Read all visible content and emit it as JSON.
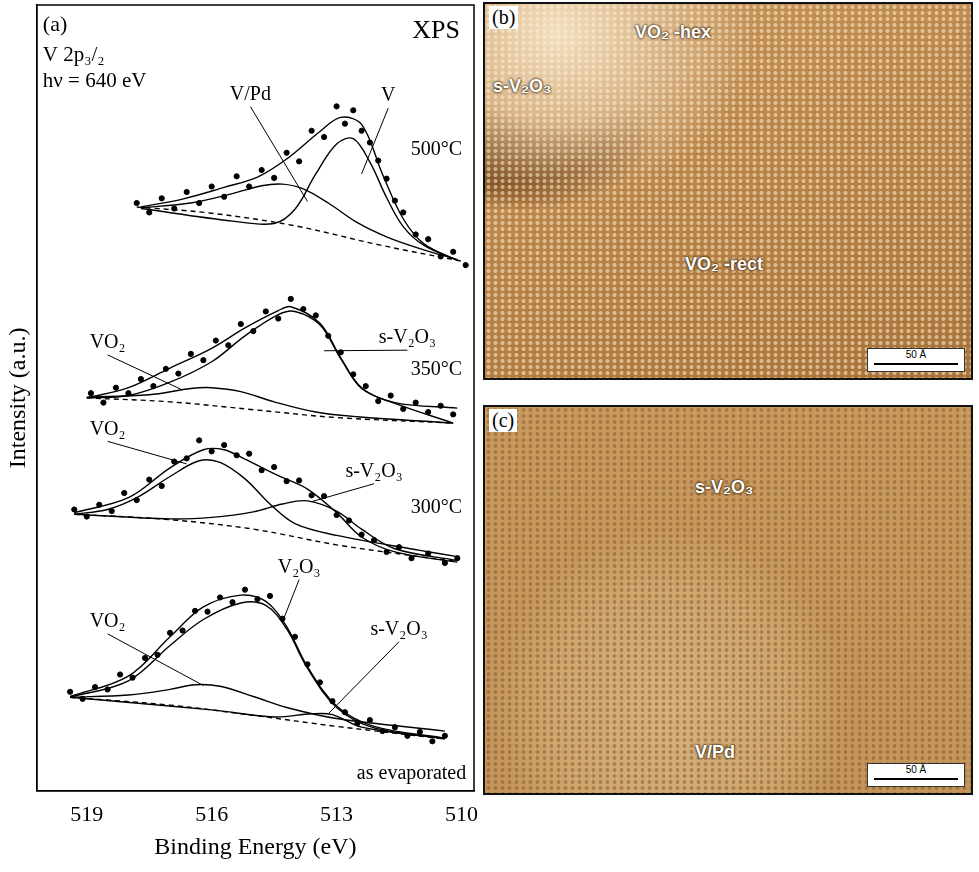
{
  "chart_data": {
    "type": "scatter",
    "panel": "(a)",
    "title": "XPS",
    "subtitle": [
      "V 2p₃/₂",
      "hν = 640 eV"
    ],
    "x_label": "Binding Energy (eV)",
    "y_label": "Intensity (a.u.)",
    "xlim": [
      520.2,
      509.7
    ],
    "xticks": [
      519,
      516,
      513,
      510
    ],
    "ylim": [
      0,
      100
    ],
    "tick_labels": "x",
    "grid": false,
    "series": [
      {
        "type": "scatter",
        "marker": "circle",
        "color": "#000000",
        "x": [
          517.8,
          517.5,
          517.2,
          516.9,
          516.6,
          516.3,
          516.0,
          515.7,
          515.4,
          515.1,
          514.8,
          514.5,
          514.2,
          513.9,
          513.6,
          513.3,
          513.0,
          512.8,
          512.6,
          512.4,
          512.2,
          512.0,
          511.8,
          511.6,
          511.4,
          511.1,
          510.8,
          510.5,
          510.2,
          509.9
        ],
        "values": [
          74.8,
          73.6,
          75.4,
          74.1,
          76.2,
          74.8,
          76.9,
          75.6,
          78.2,
          76.9,
          79.0,
          78.0,
          81.2,
          80.1,
          84.0,
          83.2,
          87.1,
          84.9,
          86.6,
          84.0,
          82.5,
          80.2,
          77.9,
          75.1,
          73.6,
          70.8,
          70.2,
          68.0,
          68.6,
          66.9
        ]
      },
      {
        "type": "line",
        "line_style": "solid",
        "color": "#000000",
        "x": [
          517.7,
          516.7,
          515.7,
          514.9,
          514.2,
          513.4,
          512.9,
          512.4,
          511.9,
          511.4,
          510.9,
          510.1
        ],
        "values": [
          74.3,
          75.3,
          76.8,
          78.1,
          80.4,
          83.9,
          85.7,
          84.8,
          78.5,
          72.8,
          69.6,
          67.5
        ]
      },
      {
        "type": "line",
        "line_style": "solid",
        "color": "#000000",
        "x": [
          517.7,
          516.5,
          515.5,
          514.8,
          514.3,
          513.8,
          513.2,
          512.5,
          511.8,
          511.0,
          510.1
        ],
        "values": [
          74.2,
          74.8,
          76.0,
          77.0,
          77.2,
          76.6,
          74.8,
          72.3,
          70.5,
          69.0,
          67.6
        ]
      },
      {
        "type": "line",
        "line_style": "solid",
        "color": "#000000",
        "x": [
          517.7,
          515.5,
          514.5,
          514.0,
          513.5,
          513.0,
          512.6,
          512.2,
          511.8,
          511.4,
          510.9,
          510.1
        ],
        "values": [
          74.1,
          72.5,
          72.2,
          74.0,
          78.5,
          82.3,
          83.0,
          80.0,
          75.5,
          71.8,
          69.4,
          67.5
        ]
      },
      {
        "type": "line",
        "line_style": "dashed",
        "color": "#000000",
        "x": [
          517.8,
          516.0,
          514.0,
          512.0,
          510.0
        ],
        "values": [
          74.3,
          73.5,
          71.9,
          69.5,
          67.4
        ]
      },
      {
        "type": "scatter",
        "marker": "circle",
        "color": "#000000",
        "x": [
          518.9,
          518.6,
          518.3,
          518.0,
          517.7,
          517.4,
          517.1,
          516.8,
          516.5,
          516.2,
          515.9,
          515.6,
          515.3,
          515.0,
          514.7,
          514.4,
          514.1,
          513.8,
          513.5,
          513.2,
          512.9,
          512.6,
          512.3,
          512.0,
          511.7,
          511.4,
          511.1,
          510.8,
          510.5,
          510.2
        ],
        "values": [
          50.6,
          49.4,
          51.3,
          50.6,
          52.4,
          51.5,
          53.7,
          53.1,
          55.6,
          54.8,
          57.3,
          56.7,
          59.4,
          58.5,
          61.0,
          60.1,
          62.6,
          61.3,
          60.5,
          57.9,
          55.8,
          53.0,
          51.5,
          49.6,
          50.3,
          48.6,
          49.4,
          48.2,
          49.0,
          47.9
        ]
      },
      {
        "type": "line",
        "line_style": "solid",
        "color": "#000000",
        "x": [
          519.0,
          518.0,
          517.0,
          516.0,
          515.2,
          514.4,
          514.1,
          513.4,
          512.9,
          512.4,
          511.6,
          510.1
        ],
        "values": [
          50.0,
          51.3,
          53.8,
          56.3,
          58.9,
          61.1,
          61.6,
          59.5,
          55.1,
          51.3,
          49.4,
          48.7
        ]
      },
      {
        "type": "line",
        "line_style": "solid",
        "color": "#000000",
        "x": [
          519.0,
          517.5,
          516.5,
          516.0,
          515.3,
          514.5,
          513.5,
          512.5,
          510.2
        ],
        "values": [
          50.1,
          50.4,
          51.2,
          51.3,
          50.8,
          49.5,
          48.2,
          47.6,
          46.8
        ]
      },
      {
        "type": "line",
        "line_style": "solid",
        "color": "#000000",
        "x": [
          519.0,
          518.0,
          517.0,
          516.0,
          515.2,
          514.4,
          514.0,
          513.4,
          512.9,
          512.4,
          511.6,
          510.2
        ],
        "values": [
          50.0,
          50.3,
          52.0,
          54.6,
          57.9,
          60.6,
          61.0,
          59.3,
          55.0,
          51.2,
          49.3,
          46.8
        ]
      },
      {
        "type": "line",
        "line_style": "dashed",
        "color": "#000000",
        "x": [
          519.0,
          517.0,
          515.0,
          513.0,
          510.2
        ],
        "values": [
          50.0,
          49.5,
          48.5,
          47.5,
          46.8
        ]
      },
      {
        "type": "scatter",
        "marker": "circle",
        "color": "#000000",
        "x": [
          519.3,
          519.0,
          518.7,
          518.4,
          518.1,
          517.8,
          517.5,
          517.2,
          516.9,
          516.6,
          516.3,
          516.0,
          515.7,
          515.4,
          515.1,
          514.8,
          514.5,
          514.2,
          513.9,
          513.6,
          513.3,
          513.0,
          512.7,
          512.4,
          512.1,
          511.8,
          511.5,
          511.2,
          510.8,
          510.4,
          510.1
        ],
        "values": [
          35.8,
          34.9,
          36.4,
          35.6,
          37.9,
          37.0,
          39.6,
          38.8,
          41.9,
          42.3,
          44.6,
          43.2,
          44.0,
          42.7,
          42.9,
          40.8,
          41.2,
          39.4,
          39.5,
          37.6,
          37.5,
          35.1,
          34.4,
          32.6,
          31.9,
          30.4,
          31.0,
          29.6,
          30.2,
          29.0,
          29.6
        ]
      },
      {
        "type": "line",
        "line_style": "solid",
        "color": "#000000",
        "x": [
          519.3,
          518.0,
          517.0,
          516.2,
          515.7,
          515.2,
          514.4,
          513.7,
          513.0,
          512.4,
          511.6,
          510.1
        ],
        "values": [
          35.4,
          37.3,
          41.1,
          43.4,
          43.4,
          42.2,
          40.1,
          38.4,
          35.4,
          32.3,
          30.4,
          29.1
        ]
      },
      {
        "type": "line",
        "line_style": "solid",
        "color": "#000000",
        "x": [
          519.3,
          518.5,
          517.8,
          517.0,
          516.3,
          515.8,
          515.2,
          514.6,
          514.0,
          513.0,
          511.0,
          510.1
        ],
        "values": [
          35.2,
          35.8,
          37.3,
          40.0,
          42.0,
          41.8,
          39.7,
          36.5,
          34.0,
          32.5,
          30.6,
          29.8
        ]
      },
      {
        "type": "line",
        "line_style": "solid",
        "color": "#000000",
        "x": [
          519.3,
          517.0,
          516.0,
          515.0,
          514.3,
          513.7,
          513.0,
          512.4,
          511.6,
          510.1
        ],
        "values": [
          35.2,
          34.6,
          34.8,
          35.5,
          36.5,
          36.9,
          35.6,
          33.3,
          30.8,
          29.3
        ]
      },
      {
        "type": "line",
        "line_style": "dashed",
        "color": "#000000",
        "x": [
          519.3,
          517.0,
          515.0,
          513.0,
          511.0,
          510.1
        ],
        "values": [
          35.2,
          34.5,
          33.3,
          31.3,
          29.8,
          29.2
        ]
      },
      {
        "type": "scatter",
        "marker": "circle",
        "color": "#000000",
        "x": [
          519.4,
          519.1,
          518.8,
          518.5,
          518.2,
          517.9,
          517.6,
          517.3,
          517.0,
          516.7,
          516.4,
          516.1,
          515.8,
          515.5,
          515.2,
          514.9,
          514.6,
          514.3,
          514.0,
          513.7,
          513.4,
          513.1,
          512.8,
          512.5,
          512.2,
          511.9,
          511.6,
          511.3,
          511.0,
          510.7,
          510.4
        ],
        "values": [
          12.6,
          11.7,
          13.2,
          12.9,
          14.8,
          14.4,
          16.9,
          17.3,
          20.1,
          20.4,
          22.9,
          22.8,
          24.6,
          24.0,
          25.6,
          24.4,
          24.8,
          21.9,
          19.6,
          16.1,
          13.8,
          11.4,
          10.0,
          8.6,
          9.0,
          7.6,
          8.1,
          7.0,
          7.5,
          6.3,
          7.0
        ]
      },
      {
        "type": "line",
        "line_style": "solid",
        "color": "#000000",
        "x": [
          519.4,
          518.0,
          517.0,
          516.2,
          515.3,
          514.7,
          514.2,
          513.7,
          513.0,
          512.1,
          510.4
        ],
        "values": [
          12.0,
          14.6,
          19.6,
          23.4,
          24.9,
          24.1,
          20.9,
          15.8,
          10.8,
          8.2,
          6.7
        ]
      },
      {
        "type": "line",
        "line_style": "solid",
        "color": "#000000",
        "x": [
          519.4,
          518.0,
          517.0,
          516.4,
          515.8,
          515.0,
          514.2,
          513.0,
          510.4
        ],
        "values": [
          11.9,
          12.2,
          12.9,
          13.5,
          13.3,
          12.0,
          10.6,
          9.2,
          7.6
        ]
      },
      {
        "type": "line",
        "line_style": "solid",
        "color": "#000000",
        "x": [
          519.4,
          518.0,
          517.0,
          516.2,
          515.3,
          514.7,
          514.2,
          513.7,
          513.0,
          512.1,
          510.4
        ],
        "values": [
          11.9,
          14.0,
          18.5,
          21.8,
          23.9,
          23.6,
          20.6,
          15.6,
          10.6,
          8.0,
          6.7
        ]
      },
      {
        "type": "line",
        "line_style": "solid",
        "color": "#000000",
        "x": [
          519.4,
          516.0,
          514.5,
          513.6,
          513.1,
          512.4,
          510.4
        ],
        "values": [
          11.9,
          10.3,
          9.4,
          9.8,
          9.7,
          8.1,
          6.6
        ]
      },
      {
        "type": "line",
        "line_style": "dashed",
        "color": "#000000",
        "x": [
          519.4,
          517.0,
          515.0,
          513.0,
          510.4
        ],
        "values": [
          11.9,
          10.9,
          9.6,
          8.2,
          6.6
        ]
      }
    ],
    "annotations": [
      {
        "text": "V/Pd",
        "x": 515.07,
        "y": 88.6,
        "target_x": 513.7,
        "target_y": 75.0
      },
      {
        "text": "V",
        "x": 511.76,
        "y": 88.4,
        "target_x": 512.4,
        "target_y": 78.5
      },
      {
        "text": "500°C",
        "x": 510.6,
        "y": 81.6
      },
      {
        "text": "VO₂",
        "x": 518.5,
        "y": 57.0,
        "target_x": 516.7,
        "target_y": 51.0
      },
      {
        "text": "s-V₂O₃",
        "x": 511.3,
        "y": 57.6,
        "target_x": 513.3,
        "target_y": 56.0
      },
      {
        "text": "350°C",
        "x": 510.6,
        "y": 53.6
      },
      {
        "text": "VO₂",
        "x": 518.5,
        "y": 46.0,
        "target_x": 516.6,
        "target_y": 41.6
      },
      {
        "text": "s-V₂O₃",
        "x": 512.1,
        "y": 40.6,
        "target_x": 513.6,
        "target_y": 36.8
      },
      {
        "text": "300°C",
        "x": 510.6,
        "y": 36.0
      },
      {
        "text": "VO₂",
        "x": 518.5,
        "y": 21.5,
        "target_x": 516.2,
        "target_y": 13.4
      },
      {
        "text": "V₂O₃",
        "x": 513.9,
        "y": 28.4,
        "target_x": 514.3,
        "target_y": 21.5
      },
      {
        "text": "s-V₂O₃",
        "x": 511.5,
        "y": 20.5,
        "target_x": 513.2,
        "target_y": 9.8
      },
      {
        "text": "as evaporated",
        "x": 511.2,
        "y": 2.2
      }
    ]
  },
  "images": [
    {
      "label": "(b)",
      "labels": [
        "VO₂ -hex",
        "s-V₂O₃",
        "VO₂ -rect"
      ],
      "scale_bar": "50 Å"
    },
    {
      "label": "(c)",
      "labels": [
        "s-V₂O₃",
        "V/Pd"
      ],
      "scale_bar": "50 Å"
    }
  ]
}
